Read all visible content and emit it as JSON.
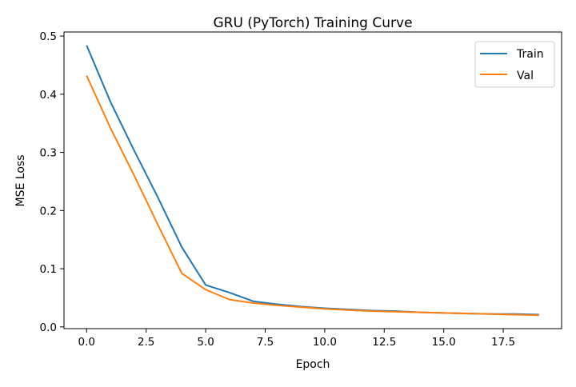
{
  "chart_data": {
    "type": "line",
    "title": "GRU (PyTorch) Training Curve",
    "xlabel": "Epoch",
    "ylabel": "MSE Loss",
    "xlim": [
      -0.95,
      19.95
    ],
    "ylim": [
      -0.003,
      0.507
    ],
    "xticks": [
      0.0,
      2.5,
      5.0,
      7.5,
      10.0,
      12.5,
      15.0,
      17.5
    ],
    "xtick_labels": [
      "0.0",
      "2.5",
      "5.0",
      "7.5",
      "10.0",
      "12.5",
      "15.0",
      "17.5"
    ],
    "yticks": [
      0.0,
      0.1,
      0.2,
      0.3,
      0.4,
      0.5
    ],
    "ytick_labels": [
      "0.0",
      "0.1",
      "0.2",
      "0.3",
      "0.4",
      "0.5"
    ],
    "grid": false,
    "legend_position": "top-right",
    "x": [
      0,
      1,
      2,
      3,
      4,
      5,
      6,
      7,
      8,
      9,
      10,
      11,
      12,
      13,
      14,
      15,
      16,
      17,
      18,
      19
    ],
    "series": [
      {
        "name": "Train",
        "color": "#1f77b4",
        "values": [
          0.484,
          0.387,
          0.303,
          0.222,
          0.137,
          0.072,
          0.059,
          0.044,
          0.039,
          0.035,
          0.032,
          0.03,
          0.028,
          0.027,
          0.025,
          0.024,
          0.023,
          0.022,
          0.022,
          0.021
        ]
      },
      {
        "name": "Val",
        "color": "#ff7f0e",
        "values": [
          0.432,
          0.342,
          0.26,
          0.175,
          0.092,
          0.064,
          0.047,
          0.041,
          0.037,
          0.034,
          0.031,
          0.029,
          0.027,
          0.026,
          0.025,
          0.024,
          0.023,
          0.022,
          0.021,
          0.02
        ]
      }
    ]
  }
}
